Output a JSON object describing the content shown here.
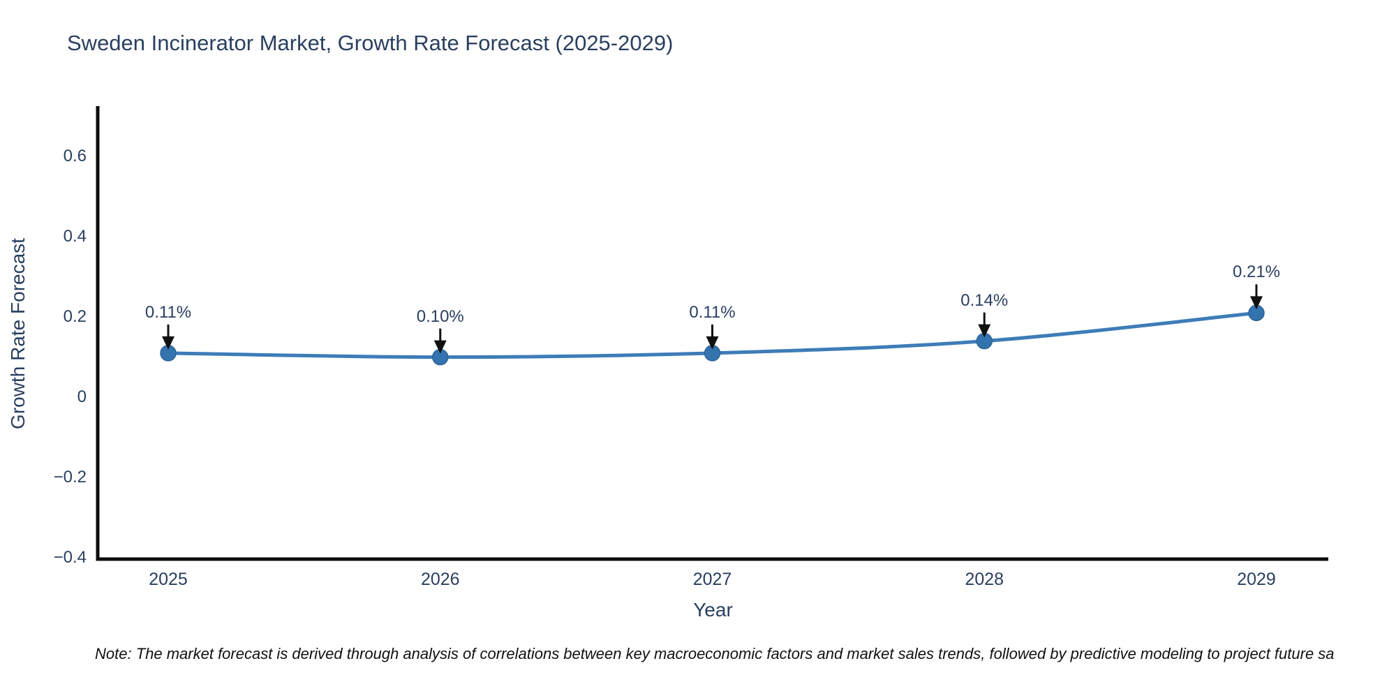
{
  "title": "Sweden Incinerator Market, Growth Rate Forecast (2025-2029)",
  "note": "Note: The market forecast is derived through analysis of correlations between key macroeconomic factors and market sales trends, followed by predictive modeling to project future sa",
  "axes": {
    "x_title": "Year",
    "y_title": "Growth Rate Forecast",
    "ytick_labels": [
      "0.6",
      "0.4",
      "0.2",
      "0",
      "−0.2",
      "−0.4"
    ]
  },
  "chart_data": {
    "type": "line",
    "title": "Sweden Incinerator Market, Growth Rate Forecast (2025-2029)",
    "xlabel": "Year",
    "ylabel": "Growth Rate Forecast",
    "x": [
      2025,
      2026,
      2027,
      2028,
      2029
    ],
    "series": [
      {
        "name": "Growth Rate Forecast",
        "values": [
          0.11,
          0.1,
          0.11,
          0.14,
          0.21
        ]
      }
    ],
    "point_labels": [
      "0.11%",
      "0.10%",
      "0.11%",
      "0.14%",
      "0.21%"
    ],
    "yticks": [
      0.6,
      0.4,
      0.2,
      0,
      -0.2,
      -0.4
    ],
    "ylim": [
      -0.403,
      0.72
    ],
    "grid": false,
    "legend": false,
    "line_shape": "spline",
    "annotations_arrows": true,
    "colors": {
      "line": "#3e7cb8",
      "marker": "#3474ae",
      "marker_edge": "#2c6398",
      "arrow": "#111111",
      "text": "#2a3f5f",
      "axis_line": "#0d0d0d",
      "background": "#ffffff"
    }
  }
}
